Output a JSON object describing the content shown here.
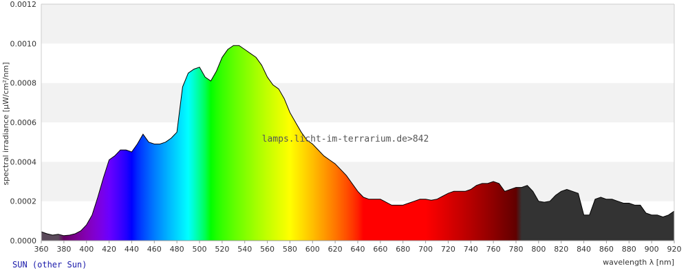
{
  "chart_data": {
    "type": "area",
    "xlabel": "wavelength λ [nm]",
    "ylabel": "spectral irradiance [µW/cm²/nm]",
    "xlim": [
      360,
      920
    ],
    "ylim": [
      0,
      0.0012
    ],
    "x_ticks": [
      360,
      380,
      400,
      420,
      440,
      460,
      480,
      500,
      520,
      540,
      560,
      580,
      600,
      620,
      640,
      660,
      680,
      700,
      720,
      740,
      760,
      780,
      800,
      820,
      840,
      860,
      880,
      900,
      920
    ],
    "y_ticks": [
      "0.0000",
      "0.0002",
      "0.0004",
      "0.0006",
      "0.0008",
      "0.0010",
      "0.0012"
    ],
    "grid": "horizontal alternating bands",
    "series": [
      {
        "x": [
          360,
          365,
          370,
          375,
          380,
          385,
          390,
          395,
          400,
          405,
          410,
          415,
          420,
          425,
          430,
          435,
          440,
          445,
          450,
          455,
          460,
          465,
          470,
          475,
          480,
          485,
          490,
          495,
          500,
          505,
          510,
          515,
          520,
          525,
          530,
          535,
          540,
          545,
          550,
          555,
          560,
          565,
          570,
          575,
          580,
          585,
          590,
          595,
          600,
          605,
          610,
          615,
          620,
          625,
          630,
          635,
          640,
          645,
          650,
          655,
          660,
          665,
          670,
          675,
          680,
          685,
          690,
          695,
          700,
          705,
          710,
          715,
          720,
          725,
          730,
          735,
          740,
          745,
          750,
          755,
          760,
          765,
          770,
          775,
          780,
          785,
          790,
          795,
          800,
          805,
          810,
          815,
          820,
          825,
          830,
          835,
          840,
          845,
          850,
          855,
          860,
          865,
          870,
          875,
          880,
          885,
          890,
          895,
          900,
          905,
          910,
          915,
          920
        ],
        "y": [
          4.5e-05,
          3.5e-05,
          2.8e-05,
          3.2e-05,
          2.5e-05,
          2.8e-05,
          3.5e-05,
          5e-05,
          8e-05,
          0.00013,
          0.00022,
          0.00032,
          0.00041,
          0.00043,
          0.00046,
          0.00046,
          0.00045,
          0.00049,
          0.00054,
          0.0005,
          0.00049,
          0.00049,
          0.0005,
          0.00052,
          0.00055,
          0.00078,
          0.00085,
          0.00087,
          0.00088,
          0.00083,
          0.00081,
          0.00086,
          0.00093,
          0.00097,
          0.00099,
          0.00099,
          0.00097,
          0.00095,
          0.00093,
          0.00089,
          0.00083,
          0.00079,
          0.00077,
          0.00072,
          0.00065,
          0.0006,
          0.00055,
          0.00051,
          0.00049,
          0.00046,
          0.00043,
          0.00041,
          0.00039,
          0.00036,
          0.00033,
          0.00029,
          0.00025,
          0.00022,
          0.00021,
          0.00021,
          0.00021,
          0.000195,
          0.00018,
          0.00018,
          0.00018,
          0.00019,
          0.0002,
          0.00021,
          0.00021,
          0.000205,
          0.00021,
          0.000225,
          0.00024,
          0.00025,
          0.00025,
          0.00025,
          0.00026,
          0.00028,
          0.00029,
          0.00029,
          0.0003,
          0.00029,
          0.00025,
          0.00026,
          0.00027,
          0.00027,
          0.00028,
          0.00025,
          0.0002,
          0.000195,
          0.0002,
          0.00023,
          0.00025,
          0.00026,
          0.00025,
          0.00024,
          0.00013,
          0.00013,
          0.00021,
          0.00022,
          0.00021,
          0.00021,
          0.0002,
          0.00019,
          0.00019,
          0.00018,
          0.00018,
          0.00014,
          0.00013,
          0.00013,
          0.00012,
          0.00013,
          0.00015
        ]
      }
    ],
    "annotations": [
      "lamps.licht-im-terrarium.de>842"
    ],
    "footer": "SUN (other Sun)",
    "colors": {
      "background": "#ffffff",
      "band": "#f2f2f2",
      "outline": "#000000",
      "infrared_fill": "#333333",
      "ultraviolet_fill": "#5a4a5a",
      "footer_text": "#1a1aaa"
    }
  }
}
